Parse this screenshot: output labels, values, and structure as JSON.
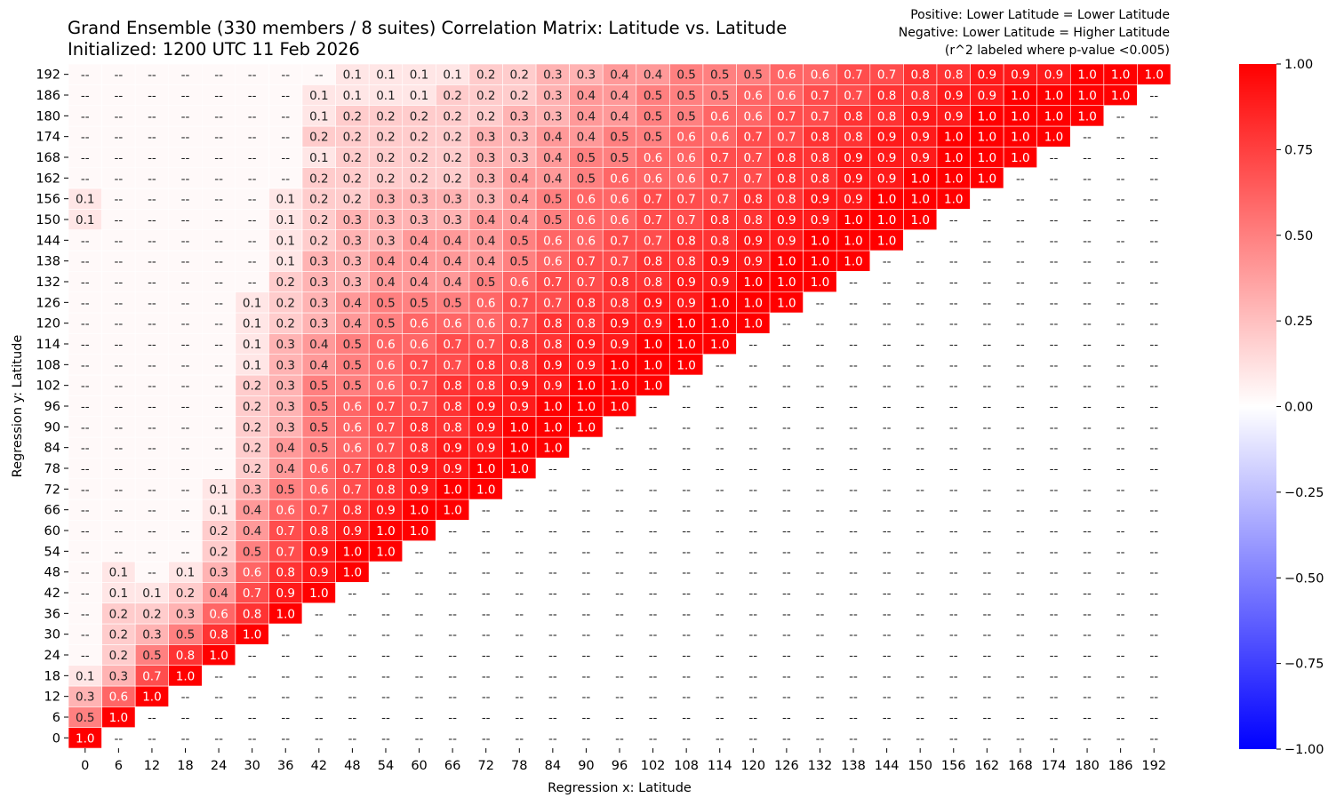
{
  "title": "Grand Ensemble (330 members / 8 suites) Correlation Matrix: Latitude vs. Latitude",
  "subtitle": "Initialized: 1200 UTC 11 Feb 2026",
  "notes": [
    "Positive: Lower Latitude = Lower Latitude",
    "Negative: Lower Latitude = Higher Latitude",
    "(r^2 labeled where p-value <0.005)"
  ],
  "empty_label": "--",
  "colors": {
    "positive": "#ff0000",
    "negative": "#0000ff",
    "neutral": "#ffffff"
  },
  "chart_data": {
    "type": "heatmap",
    "xlabel": "Regression x: Latitude",
    "ylabel": "Regression y: Latitude",
    "x": [
      0,
      6,
      12,
      18,
      24,
      30,
      36,
      42,
      48,
      54,
      60,
      66,
      72,
      78,
      84,
      90,
      96,
      102,
      108,
      114,
      120,
      126,
      132,
      138,
      144,
      150,
      156,
      162,
      168,
      174,
      180,
      186,
      192
    ],
    "y": [
      0,
      6,
      12,
      18,
      24,
      30,
      36,
      42,
      48,
      54,
      60,
      66,
      72,
      78,
      84,
      90,
      96,
      102,
      108,
      114,
      120,
      126,
      132,
      138,
      144,
      150,
      156,
      162,
      168,
      174,
      180,
      186,
      192
    ],
    "colorbar": {
      "range": [
        -1,
        1
      ],
      "ticks": [
        "1.00",
        "0.75",
        "0.50",
        "0.25",
        "0.00",
        "−0.25",
        "−0.50",
        "−0.75",
        "−1.00"
      ]
    },
    "rows": [
      {
        "y": 0,
        "r2": [
          "1.0"
        ]
      },
      {
        "y": 6,
        "r2": [
          "0.5",
          "1.0"
        ]
      },
      {
        "y": 12,
        "r2": [
          "0.3",
          "0.6",
          "1.0"
        ]
      },
      {
        "y": 18,
        "r2": [
          "0.1",
          "0.3",
          "0.7",
          "1.0"
        ]
      },
      {
        "y": 24,
        "r2": [
          "--",
          "0.2",
          "0.5",
          "0.8",
          "1.0"
        ]
      },
      {
        "y": 30,
        "r2": [
          "--",
          "0.2",
          "0.3",
          "0.5",
          "0.8",
          "1.0"
        ]
      },
      {
        "y": 36,
        "r2": [
          "--",
          "0.2",
          "0.2",
          "0.3",
          "0.6",
          "0.8",
          "1.0"
        ]
      },
      {
        "y": 42,
        "r2": [
          "--",
          "0.1",
          "0.1",
          "0.2",
          "0.4",
          "0.7",
          "0.9",
          "1.0"
        ]
      },
      {
        "y": 48,
        "r2": [
          "--",
          "0.1",
          "--",
          "0.1",
          "0.3",
          "0.6",
          "0.8",
          "0.9",
          "1.0"
        ]
      },
      {
        "y": 54,
        "r2": [
          "--",
          "--",
          "--",
          "--",
          "0.2",
          "0.5",
          "0.7",
          "0.9",
          "1.0",
          "1.0"
        ]
      },
      {
        "y": 60,
        "r2": [
          "--",
          "--",
          "--",
          "--",
          "0.2",
          "0.4",
          "0.7",
          "0.8",
          "0.9",
          "1.0",
          "1.0"
        ]
      },
      {
        "y": 66,
        "r2": [
          "--",
          "--",
          "--",
          "--",
          "0.1",
          "0.4",
          "0.6",
          "0.7",
          "0.8",
          "0.9",
          "1.0",
          "1.0"
        ]
      },
      {
        "y": 72,
        "r2": [
          "--",
          "--",
          "--",
          "--",
          "0.1",
          "0.3",
          "0.5",
          "0.6",
          "0.7",
          "0.8",
          "0.9",
          "1.0",
          "1.0"
        ]
      },
      {
        "y": 78,
        "r2": [
          "--",
          "--",
          "--",
          "--",
          "--",
          "0.2",
          "0.4",
          "0.6",
          "0.7",
          "0.8",
          "0.9",
          "0.9",
          "1.0",
          "1.0"
        ]
      },
      {
        "y": 84,
        "r2": [
          "--",
          "--",
          "--",
          "--",
          "--",
          "0.2",
          "0.4",
          "0.5",
          "0.6",
          "0.7",
          "0.8",
          "0.9",
          "0.9",
          "1.0",
          "1.0"
        ]
      },
      {
        "y": 90,
        "r2": [
          "--",
          "--",
          "--",
          "--",
          "--",
          "0.2",
          "0.3",
          "0.5",
          "0.6",
          "0.7",
          "0.8",
          "0.8",
          "0.9",
          "1.0",
          "1.0",
          "1.0"
        ]
      },
      {
        "y": 96,
        "r2": [
          "--",
          "--",
          "--",
          "--",
          "--",
          "0.2",
          "0.3",
          "0.5",
          "0.6",
          "0.7",
          "0.7",
          "0.8",
          "0.9",
          "0.9",
          "1.0",
          "1.0",
          "1.0"
        ]
      },
      {
        "y": 102,
        "r2": [
          "--",
          "--",
          "--",
          "--",
          "--",
          "0.2",
          "0.3",
          "0.5",
          "0.5",
          "0.6",
          "0.7",
          "0.8",
          "0.8",
          "0.9",
          "0.9",
          "1.0",
          "1.0",
          "1.0"
        ]
      },
      {
        "y": 108,
        "r2": [
          "--",
          "--",
          "--",
          "--",
          "--",
          "0.1",
          "0.3",
          "0.4",
          "0.5",
          "0.6",
          "0.7",
          "0.7",
          "0.8",
          "0.8",
          "0.9",
          "0.9",
          "1.0",
          "1.0",
          "1.0"
        ]
      },
      {
        "y": 114,
        "r2": [
          "--",
          "--",
          "--",
          "--",
          "--",
          "0.1",
          "0.3",
          "0.4",
          "0.5",
          "0.6",
          "0.6",
          "0.7",
          "0.7",
          "0.8",
          "0.8",
          "0.9",
          "0.9",
          "1.0",
          "1.0",
          "1.0"
        ]
      },
      {
        "y": 120,
        "r2": [
          "--",
          "--",
          "--",
          "--",
          "--",
          "0.1",
          "0.2",
          "0.3",
          "0.4",
          "0.5",
          "0.6",
          "0.6",
          "0.6",
          "0.7",
          "0.8",
          "0.8",
          "0.9",
          "0.9",
          "1.0",
          "1.0",
          "1.0"
        ]
      },
      {
        "y": 126,
        "r2": [
          "--",
          "--",
          "--",
          "--",
          "--",
          "0.1",
          "0.2",
          "0.3",
          "0.4",
          "0.5",
          "0.5",
          "0.5",
          "0.6",
          "0.7",
          "0.7",
          "0.8",
          "0.8",
          "0.9",
          "0.9",
          "1.0",
          "1.0",
          "1.0"
        ]
      },
      {
        "y": 132,
        "r2": [
          "--",
          "--",
          "--",
          "--",
          "--",
          "--",
          "0.2",
          "0.3",
          "0.3",
          "0.4",
          "0.4",
          "0.4",
          "0.5",
          "0.6",
          "0.7",
          "0.7",
          "0.8",
          "0.8",
          "0.9",
          "0.9",
          "1.0",
          "1.0",
          "1.0"
        ]
      },
      {
        "y": 138,
        "r2": [
          "--",
          "--",
          "--",
          "--",
          "--",
          "--",
          "0.1",
          "0.3",
          "0.3",
          "0.4",
          "0.4",
          "0.4",
          "0.4",
          "0.5",
          "0.6",
          "0.7",
          "0.7",
          "0.8",
          "0.8",
          "0.9",
          "0.9",
          "1.0",
          "1.0",
          "1.0"
        ]
      },
      {
        "y": 144,
        "r2": [
          "--",
          "--",
          "--",
          "--",
          "--",
          "--",
          "0.1",
          "0.2",
          "0.3",
          "0.3",
          "0.4",
          "0.4",
          "0.4",
          "0.5",
          "0.6",
          "0.6",
          "0.7",
          "0.7",
          "0.8",
          "0.8",
          "0.9",
          "0.9",
          "1.0",
          "1.0",
          "1.0"
        ]
      },
      {
        "y": 150,
        "r2": [
          "0.1",
          "--",
          "--",
          "--",
          "--",
          "--",
          "0.1",
          "0.2",
          "0.3",
          "0.3",
          "0.3",
          "0.3",
          "0.4",
          "0.4",
          "0.5",
          "0.6",
          "0.6",
          "0.7",
          "0.7",
          "0.8",
          "0.8",
          "0.9",
          "0.9",
          "1.0",
          "1.0",
          "1.0"
        ]
      },
      {
        "y": 156,
        "r2": [
          "0.1",
          "--",
          "--",
          "--",
          "--",
          "--",
          "0.1",
          "0.2",
          "0.2",
          "0.3",
          "0.3",
          "0.3",
          "0.3",
          "0.4",
          "0.5",
          "0.6",
          "0.6",
          "0.7",
          "0.7",
          "0.7",
          "0.8",
          "0.8",
          "0.9",
          "0.9",
          "1.0",
          "1.0",
          "1.0"
        ]
      },
      {
        "y": 162,
        "r2": [
          "--",
          "--",
          "--",
          "--",
          "--",
          "--",
          "--",
          "0.2",
          "0.2",
          "0.2",
          "0.2",
          "0.2",
          "0.3",
          "0.4",
          "0.4",
          "0.5",
          "0.6",
          "0.6",
          "0.6",
          "0.7",
          "0.7",
          "0.8",
          "0.8",
          "0.9",
          "0.9",
          "1.0",
          "1.0",
          "1.0"
        ]
      },
      {
        "y": 168,
        "r2": [
          "--",
          "--",
          "--",
          "--",
          "--",
          "--",
          "--",
          "0.1",
          "0.2",
          "0.2",
          "0.2",
          "0.2",
          "0.3",
          "0.3",
          "0.4",
          "0.5",
          "0.5",
          "0.6",
          "0.6",
          "0.7",
          "0.7",
          "0.8",
          "0.8",
          "0.9",
          "0.9",
          "0.9",
          "1.0",
          "1.0",
          "1.0"
        ]
      },
      {
        "y": 174,
        "r2": [
          "--",
          "--",
          "--",
          "--",
          "--",
          "--",
          "--",
          "0.2",
          "0.2",
          "0.2",
          "0.2",
          "0.2",
          "0.3",
          "0.3",
          "0.4",
          "0.4",
          "0.5",
          "0.5",
          "0.6",
          "0.6",
          "0.7",
          "0.7",
          "0.8",
          "0.8",
          "0.9",
          "0.9",
          "1.0",
          "1.0",
          "1.0",
          "1.0"
        ]
      },
      {
        "y": 180,
        "r2": [
          "--",
          "--",
          "--",
          "--",
          "--",
          "--",
          "--",
          "0.1",
          "0.2",
          "0.2",
          "0.2",
          "0.2",
          "0.2",
          "0.3",
          "0.3",
          "0.4",
          "0.4",
          "0.5",
          "0.5",
          "0.6",
          "0.6",
          "0.7",
          "0.7",
          "0.8",
          "0.8",
          "0.9",
          "0.9",
          "1.0",
          "1.0",
          "1.0",
          "1.0"
        ]
      },
      {
        "y": 186,
        "r2": [
          "--",
          "--",
          "--",
          "--",
          "--",
          "--",
          "--",
          "0.1",
          "0.1",
          "0.1",
          "0.1",
          "0.2",
          "0.2",
          "0.2",
          "0.3",
          "0.4",
          "0.4",
          "0.5",
          "0.5",
          "0.5",
          "0.6",
          "0.6",
          "0.7",
          "0.7",
          "0.8",
          "0.8",
          "0.9",
          "0.9",
          "1.0",
          "1.0",
          "1.0",
          "1.0"
        ]
      },
      {
        "y": 192,
        "r2": [
          "--",
          "--",
          "--",
          "--",
          "--",
          "--",
          "--",
          "--",
          "0.1",
          "0.1",
          "0.1",
          "0.1",
          "0.2",
          "0.2",
          "0.3",
          "0.3",
          "0.4",
          "0.4",
          "0.5",
          "0.5",
          "0.5",
          "0.6",
          "0.6",
          "0.7",
          "0.7",
          "0.8",
          "0.8",
          "0.9",
          "0.9",
          "0.9",
          "1.0",
          "1.0",
          "1.0"
        ]
      }
    ]
  }
}
